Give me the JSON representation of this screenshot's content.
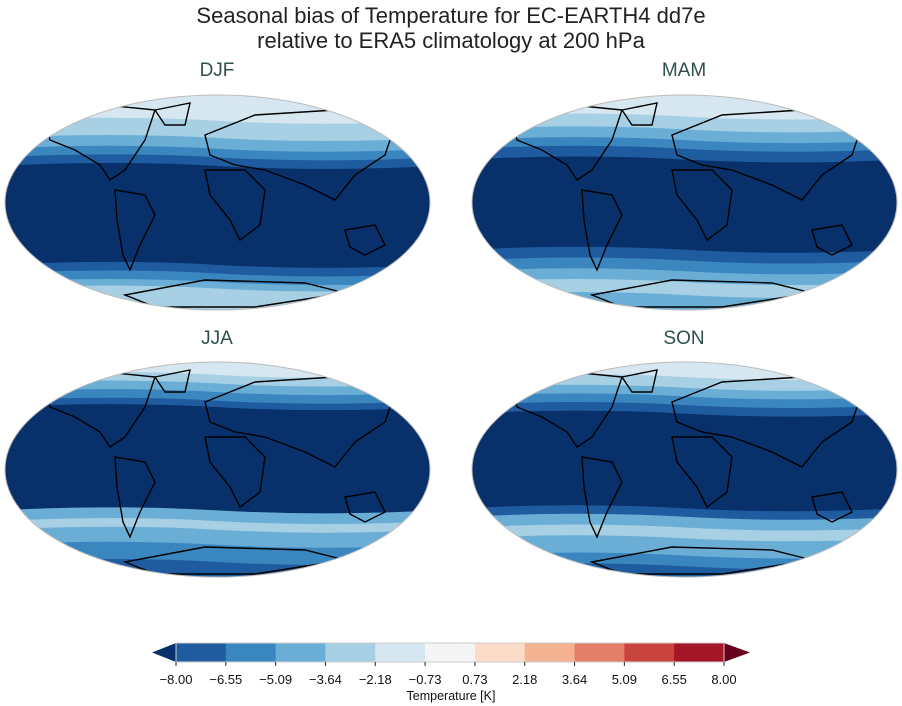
{
  "title_line1": "Seasonal bias of Temperature for EC-EARTH4 dd7e",
  "title_line2": "relative to ERA5 climatology at 200 hPa",
  "panels": [
    {
      "label": "DJF"
    },
    {
      "label": "MAM"
    },
    {
      "label": "JJA"
    },
    {
      "label": "SON"
    }
  ],
  "colorbar": {
    "label": "Temperature [K]",
    "ticks": [
      "−8.00",
      "−6.55",
      "−5.09",
      "−3.64",
      "−2.18",
      "−0.73",
      "0.73",
      "2.18",
      "3.64",
      "5.09",
      "6.55",
      "8.00"
    ],
    "colors": [
      "#1f5c9f",
      "#3a87c0",
      "#6aaed6",
      "#a7d0e4",
      "#d6e7f1",
      "#f5f5f5",
      "#fcdbc8",
      "#f5b292",
      "#e4806a",
      "#c9443e",
      "#a51628"
    ],
    "extend_low_color": "#08306b",
    "extend_high_color": "#67001f"
  }
}
